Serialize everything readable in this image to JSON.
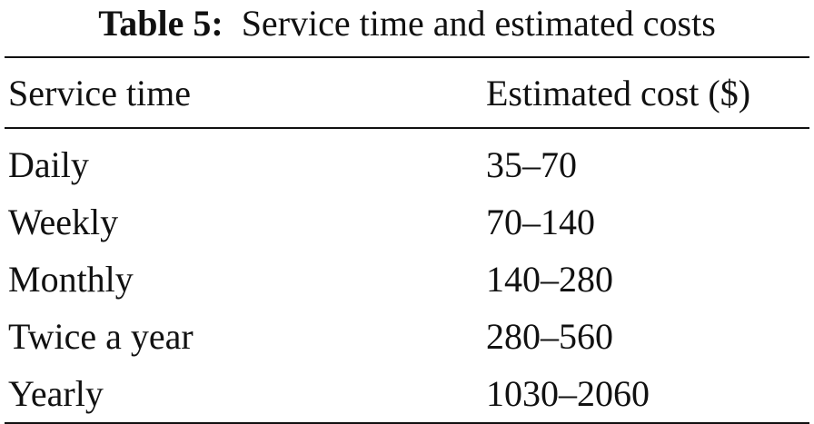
{
  "caption": {
    "label": "Table 5:",
    "text": "Service time and estimated costs"
  },
  "table": {
    "header": [
      "Service time",
      "Estimated cost ($)"
    ],
    "rows": [
      [
        "Daily",
        "35–70"
      ],
      [
        "Weekly",
        "70–140"
      ],
      [
        "Monthly",
        "140–280"
      ],
      [
        "Twice a year",
        "280–560"
      ],
      [
        "Yearly",
        "1030–2060"
      ]
    ]
  }
}
